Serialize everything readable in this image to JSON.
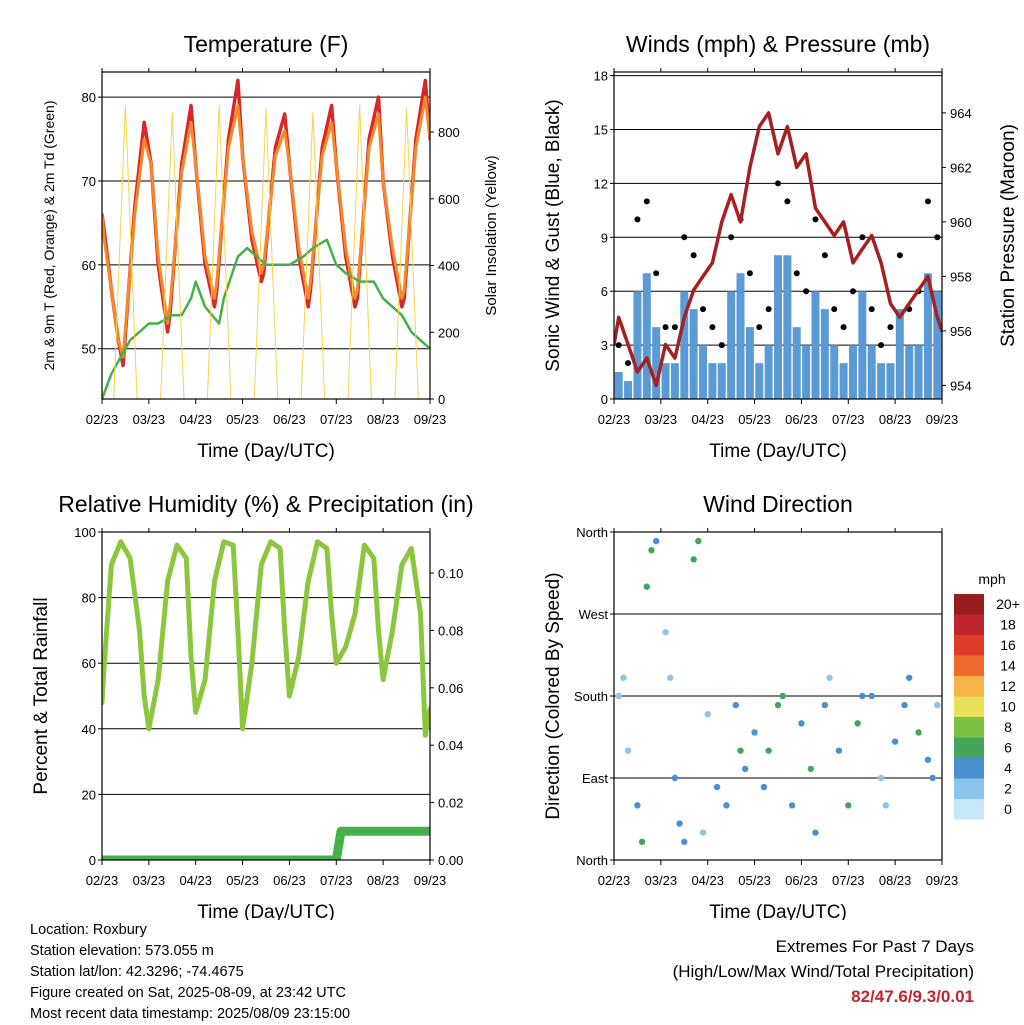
{
  "colors": {
    "temp2m": "#d62828",
    "temp9m": "#f4892a",
    "dewpoint": "#43b049",
    "solar": "#f3d54a",
    "gust": "#000000",
    "wind": "#5b9bd5",
    "pressure": "#a52020",
    "rh": "#8cc63f",
    "rain": "#43b049",
    "extremes": "#c0272d"
  },
  "date_ticks": [
    "02/23",
    "03/23",
    "04/23",
    "05/23",
    "06/23",
    "07/23",
    "08/23",
    "09/23"
  ],
  "chart_data": [
    {
      "id": "temperature",
      "type": "line",
      "title": "Temperature (F)",
      "xlabel": "Time (Day/UTC)",
      "ylabel": "2m & 9m T (Red, Orange) & 2m Td (Green)",
      "y2label": "Solar Insolation (Yellow)",
      "x_range_days": [
        0,
        7
      ],
      "ylim": [
        44,
        83
      ],
      "yticks": [
        50,
        60,
        70,
        80
      ],
      "y2lim": [
        0,
        980
      ],
      "y2ticks": [
        0,
        200,
        400,
        600,
        800
      ],
      "grid": true,
      "series": [
        {
          "key": "temp2m",
          "x": [
            0,
            0.05,
            0.2,
            0.35,
            0.45,
            0.7,
            0.9,
            1.05,
            1.2,
            1.4,
            1.45,
            1.7,
            1.9,
            2.0,
            2.2,
            2.4,
            2.45,
            2.7,
            2.9,
            3.0,
            3.2,
            3.4,
            3.45,
            3.7,
            3.9,
            4.0,
            4.2,
            4.4,
            4.45,
            4.7,
            4.9,
            5.0,
            5.2,
            5.4,
            5.45,
            5.7,
            5.9,
            6.0,
            6.2,
            6.4,
            6.45,
            6.7,
            6.9,
            7.0
          ],
          "y": [
            66,
            64,
            57,
            51,
            48,
            67,
            77,
            72,
            60,
            52,
            54,
            72,
            79,
            72,
            60,
            55,
            57,
            75,
            82,
            73,
            63,
            58,
            59,
            74,
            78,
            72,
            61,
            55,
            57,
            74,
            79,
            72,
            61,
            55,
            56,
            75,
            80,
            70,
            61,
            55,
            56,
            75,
            82,
            75
          ]
        },
        {
          "key": "temp9m",
          "x": [
            0,
            0.05,
            0.2,
            0.35,
            0.45,
            0.7,
            0.9,
            1.05,
            1.2,
            1.4,
            1.45,
            1.7,
            1.9,
            2.0,
            2.2,
            2.4,
            2.45,
            2.7,
            2.9,
            3.0,
            3.2,
            3.4,
            3.45,
            3.7,
            3.9,
            4.0,
            4.2,
            4.4,
            4.45,
            4.7,
            4.9,
            5.0,
            5.2,
            5.4,
            5.45,
            5.7,
            5.9,
            6.0,
            6.2,
            6.4,
            6.45,
            6.7,
            6.9,
            7.0
          ],
          "y": [
            66,
            63,
            57,
            51,
            49,
            66,
            75,
            72,
            61,
            53,
            55,
            71,
            77,
            72,
            61,
            56,
            58,
            74,
            79,
            73,
            64,
            59,
            60,
            73,
            76,
            72,
            62,
            56,
            58,
            73,
            77,
            72,
            62,
            56,
            57,
            74,
            78,
            70,
            62,
            56,
            57,
            74,
            80,
            75
          ]
        },
        {
          "key": "dewpoint",
          "x": [
            0,
            0.2,
            0.4,
            0.6,
            0.8,
            1.0,
            1.2,
            1.5,
            1.7,
            1.9,
            2.0,
            2.2,
            2.5,
            2.6,
            2.9,
            3.1,
            3.3,
            3.5,
            3.8,
            4.0,
            4.3,
            4.5,
            4.8,
            5.0,
            5.2,
            5.5,
            5.8,
            6.0,
            6.2,
            6.4,
            6.6,
            6.8,
            7.0
          ],
          "y": [
            44,
            47,
            49,
            51,
            52,
            53,
            53,
            54,
            54,
            56,
            58,
            55,
            53,
            56,
            61,
            62,
            61,
            60,
            60,
            60,
            61,
            62,
            63,
            60,
            59,
            58,
            58,
            56,
            55,
            54,
            52,
            51,
            50
          ]
        },
        {
          "key": "solar",
          "x": [
            0,
            0.25,
            0.5,
            0.75,
            1.0,
            1.25,
            1.5,
            1.75,
            2.0,
            2.25,
            2.5,
            2.75,
            3.0,
            3.25,
            3.5,
            3.75,
            4.0,
            4.25,
            4.5,
            4.75,
            5.0,
            5.25,
            5.5,
            5.75,
            6.0,
            6.25,
            6.5,
            6.75,
            7.0
          ],
          "y2": [
            0,
            0,
            880,
            0,
            0,
            0,
            860,
            0,
            0,
            0,
            880,
            0,
            0,
            0,
            870,
            0,
            0,
            0,
            860,
            0,
            0,
            0,
            880,
            0,
            0,
            0,
            870,
            0,
            0
          ]
        }
      ]
    },
    {
      "id": "winds",
      "type": "scatter",
      "title": "Winds (mph) & Pressure (mb)",
      "xlabel": "Time (Day/UTC)",
      "ylabel": "Sonic Wind & Gust (Blue, Black)",
      "y2label": "Station Pressure (Maroon)",
      "x_range_days": [
        0,
        7
      ],
      "ylim": [
        0,
        18.2
      ],
      "yticks": [
        0,
        3,
        6,
        9,
        12,
        15,
        18
      ],
      "y2lim": [
        953.5,
        965.5
      ],
      "y2ticks": [
        954,
        956,
        958,
        960,
        962,
        964
      ],
      "grid": true,
      "series": [
        {
          "key": "gust",
          "x": [
            0.1,
            0.3,
            0.5,
            0.7,
            0.9,
            1.1,
            1.3,
            1.5,
            1.7,
            1.9,
            2.1,
            2.3,
            2.5,
            2.7,
            2.9,
            3.1,
            3.3,
            3.5,
            3.7,
            3.9,
            4.1,
            4.3,
            4.5,
            4.7,
            4.9,
            5.1,
            5.3,
            5.5,
            5.7,
            5.9,
            6.1,
            6.3,
            6.5,
            6.7,
            6.9
          ],
          "y": [
            3,
            2,
            10,
            11,
            7,
            4,
            4,
            9,
            8,
            5,
            4,
            3,
            9,
            10,
            7,
            4,
            5,
            12,
            11,
            7,
            6,
            10,
            8,
            5,
            4,
            6,
            9,
            5,
            3,
            4,
            8,
            5,
            6,
            11,
            9
          ]
        },
        {
          "key": "wind",
          "x": [
            0.1,
            0.3,
            0.5,
            0.7,
            0.9,
            1.1,
            1.3,
            1.5,
            1.7,
            1.9,
            2.1,
            2.3,
            2.5,
            2.7,
            2.9,
            3.1,
            3.3,
            3.5,
            3.7,
            3.9,
            4.1,
            4.3,
            4.5,
            4.7,
            4.9,
            5.1,
            5.3,
            5.5,
            5.7,
            5.9,
            6.1,
            6.3,
            6.5,
            6.7,
            6.9
          ],
          "y": [
            1.5,
            1,
            6,
            7,
            4,
            2,
            2,
            6,
            5,
            3,
            2,
            2,
            6,
            7,
            4,
            2,
            3,
            8,
            8,
            4,
            3,
            6,
            5,
            3,
            2,
            3,
            6,
            3,
            2,
            2,
            5,
            3,
            3,
            7,
            6
          ]
        },
        {
          "key": "pressure",
          "x": [
            0,
            0.1,
            0.3,
            0.5,
            0.7,
            0.9,
            1.1,
            1.3,
            1.5,
            1.7,
            1.9,
            2.1,
            2.3,
            2.5,
            2.7,
            2.9,
            3.1,
            3.3,
            3.5,
            3.7,
            3.9,
            4.1,
            4.3,
            4.5,
            4.7,
            4.9,
            5.1,
            5.3,
            5.5,
            5.7,
            5.9,
            6.1,
            6.3,
            6.5,
            6.7,
            6.9,
            7.0
          ],
          "y2": [
            955.5,
            956.5,
            955.5,
            954.5,
            955,
            954,
            955.5,
            955,
            956.5,
            957.5,
            958,
            958.5,
            960,
            961,
            960,
            962,
            963.5,
            964,
            962.5,
            963.5,
            962,
            962.5,
            960.5,
            960,
            959.5,
            960,
            958.5,
            959,
            959.5,
            958.5,
            957,
            956.5,
            957,
            957.5,
            958,
            956.5,
            956
          ]
        }
      ]
    },
    {
      "id": "humidity",
      "type": "line",
      "title": "Relative Humidity (%) & Precipitation (in)",
      "xlabel": "Time (Day/UTC)",
      "ylabel": "Percent & Total Rainfall",
      "x_range_days": [
        0,
        7
      ],
      "ylim": [
        0,
        100
      ],
      "yticks": [
        0,
        20,
        40,
        60,
        80,
        100
      ],
      "y2lim": [
        0,
        0.1143
      ],
      "y2ticks": [
        0.0,
        0.02,
        0.04,
        0.06,
        0.08,
        0.1
      ],
      "grid": true,
      "series": [
        {
          "key": "rh",
          "x": [
            0,
            0.05,
            0.2,
            0.4,
            0.6,
            0.8,
            0.9,
            1.0,
            1.2,
            1.4,
            1.6,
            1.8,
            1.9,
            2.0,
            2.2,
            2.4,
            2.6,
            2.8,
            2.9,
            3.0,
            3.2,
            3.4,
            3.6,
            3.8,
            3.9,
            4.0,
            4.2,
            4.4,
            4.6,
            4.8,
            4.9,
            5.0,
            5.2,
            5.4,
            5.6,
            5.8,
            5.9,
            6.0,
            6.2,
            6.4,
            6.6,
            6.8,
            6.9,
            7.0
          ],
          "y": [
            48,
            60,
            90,
            97,
            92,
            70,
            50,
            40,
            55,
            85,
            96,
            92,
            62,
            45,
            55,
            85,
            97,
            96,
            70,
            40,
            60,
            90,
            97,
            95,
            70,
            50,
            62,
            85,
            97,
            95,
            75,
            60,
            65,
            75,
            96,
            92,
            70,
            55,
            70,
            90,
            95,
            75,
            38,
            46
          ]
        },
        {
          "key": "rain",
          "x": [
            0,
            5.0,
            5.05,
            5.1,
            7.0
          ],
          "y2": [
            0.0,
            0.0,
            0.005,
            0.01,
            0.01
          ]
        }
      ]
    },
    {
      "id": "direction",
      "type": "scatter",
      "title": "Wind Direction",
      "xlabel": "Time (Day/UTC)",
      "ylabel": "Direction (Colored By Speed)",
      "x_range_days": [
        0,
        7
      ],
      "ylim": [
        0,
        360
      ],
      "ytick_labels": [
        "North",
        "East",
        "South",
        "West",
        "North"
      ],
      "yticks": [
        0,
        90,
        180,
        270,
        360
      ],
      "grid": true,
      "legend": {
        "title": "mph",
        "labels": [
          "0",
          "2",
          "4",
          "6",
          "8",
          "10",
          "12",
          "14",
          "16",
          "18",
          "20+"
        ],
        "colors": [
          "#c6e7f8",
          "#8cc4ec",
          "#4a8fd0",
          "#43a55a",
          "#7bc043",
          "#e8e05a",
          "#f7b347",
          "#f16a2d",
          "#e03a2b",
          "#c0272d",
          "#981e1e"
        ]
      },
      "series": [
        {
          "key": "points",
          "x": [
            0.1,
            0.2,
            0.3,
            0.5,
            0.6,
            0.7,
            0.8,
            0.9,
            1.1,
            1.2,
            1.3,
            1.4,
            1.5,
            1.7,
            1.8,
            1.9,
            2.0,
            2.2,
            2.4,
            2.6,
            2.7,
            2.8,
            3.0,
            3.2,
            3.3,
            3.5,
            3.6,
            3.8,
            4.0,
            4.2,
            4.3,
            4.5,
            4.6,
            4.8,
            5.0,
            5.2,
            5.3,
            5.5,
            5.7,
            5.8,
            6.0,
            6.2,
            6.3,
            6.5,
            6.7,
            6.8,
            6.9
          ],
          "y": [
            180,
            200,
            120,
            60,
            20,
            300,
            340,
            350,
            250,
            200,
            90,
            40,
            20,
            330,
            350,
            30,
            160,
            80,
            60,
            170,
            120,
            100,
            140,
            80,
            120,
            170,
            180,
            60,
            150,
            100,
            30,
            170,
            200,
            120,
            60,
            150,
            180,
            180,
            90,
            60,
            130,
            170,
            200,
            140,
            110,
            90,
            170
          ],
          "speed": [
            1,
            1,
            2,
            4,
            6,
            5,
            6,
            4,
            2,
            1,
            3,
            4,
            3,
            6,
            5,
            2,
            2,
            3,
            4,
            4,
            5,
            3,
            3,
            4,
            5,
            6,
            5,
            4,
            3,
            6,
            4,
            4,
            2,
            3,
            5,
            6,
            4,
            3,
            2,
            1,
            3,
            4,
            3,
            5,
            4,
            3,
            2
          ]
        }
      ]
    }
  ],
  "info": {
    "location": "Location: Roxbury",
    "elevation": "Station elevation: 573.055 m",
    "latlon": "Station lat/lon: 42.3296; -74.4675",
    "created": "Figure created on Sat, 2025-08-09, at 23:42 UTC",
    "recent": "Most recent data timestamp: 2025/08/09 23:15:00"
  },
  "extremes": {
    "line1": "Extremes For Past 7 Days",
    "line2": "(High/Low/Max Wind/Total Precipitation)",
    "values": "82/47.6/9.3/0.01"
  }
}
